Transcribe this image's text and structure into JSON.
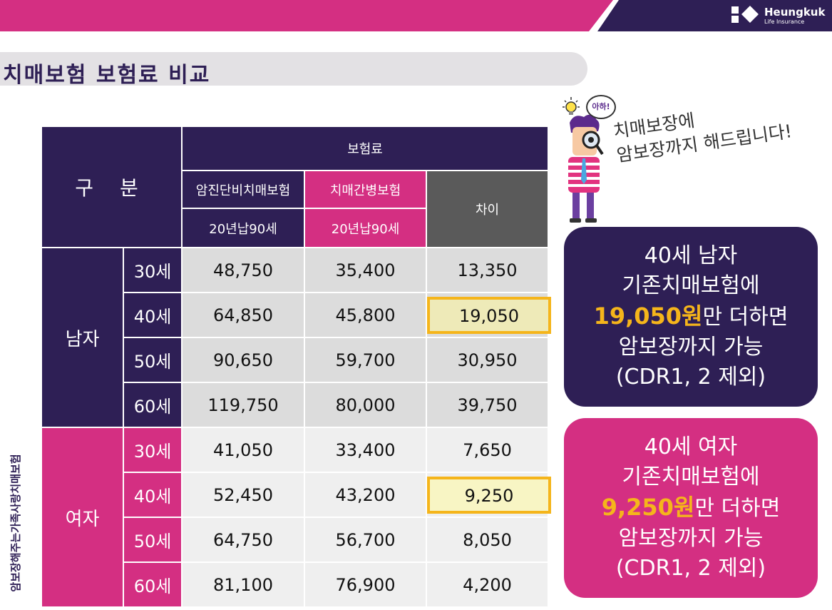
{
  "brand": {
    "name": "Heungkuk",
    "sub": "Life Insurance",
    "colors": {
      "dark": "#2e1f55",
      "pink": "#d42f82",
      "gray": "#5a5a5a",
      "highlight": "#f5b51b"
    }
  },
  "title": "치매보험 보험료 비교",
  "side_text": "암보장해주는가족사랑치매보험",
  "table": {
    "header": {
      "gubun": "구 분",
      "premium": "보험료",
      "col1": "암진단비치매보험",
      "col2": "치매간병보험",
      "col3": "차이",
      "col1_sub": "20년납90세",
      "col2_sub": "20년납90세"
    },
    "groups": [
      {
        "gender": "남자",
        "rows": [
          {
            "age": "30세",
            "v1": "48,750",
            "v2": "35,400",
            "diff": "13,350"
          },
          {
            "age": "40세",
            "v1": "64,850",
            "v2": "45,800",
            "diff": "19,050"
          },
          {
            "age": "50세",
            "v1": "90,650",
            "v2": "59,700",
            "diff": "30,950"
          },
          {
            "age": "60세",
            "v1": "119,750",
            "v2": "80,000",
            "diff": "39,750"
          }
        ]
      },
      {
        "gender": "여자",
        "rows": [
          {
            "age": "30세",
            "v1": "41,050",
            "v2": "33,400",
            "diff": "7,650"
          },
          {
            "age": "40세",
            "v1": "52,450",
            "v2": "43,200",
            "diff": "9,250"
          },
          {
            "age": "50세",
            "v1": "64,750",
            "v2": "56,700",
            "diff": "8,050"
          },
          {
            "age": "60세",
            "v1": "81,100",
            "v2": "76,900",
            "diff": "4,200"
          }
        ]
      }
    ]
  },
  "callout_male": {
    "line1": "40세 남자",
    "line2": "기존치매보험에",
    "amount": "19,050원",
    "line3_rest": "만 더하면",
    "line4": "암보장까지 가능",
    "line5": "(CDR1, 2 제외)"
  },
  "callout_female": {
    "line1": "40세 여자",
    "line2": "기존치매보험에",
    "amount": "9,250원",
    "line3_rest": "만 더하면",
    "line4": "암보장까지 가능",
    "line5": "(CDR1, 2 제외)"
  },
  "speech": {
    "exclaim": "아하!",
    "line1": "치매보장에",
    "line2": "암보장까지 해드립니다!"
  }
}
